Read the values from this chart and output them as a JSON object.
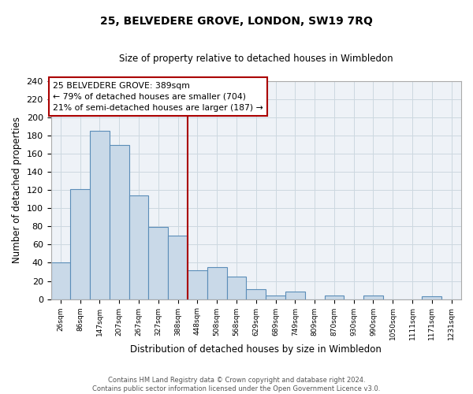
{
  "title": "25, BELVEDERE GROVE, LONDON, SW19 7RQ",
  "subtitle": "Size of property relative to detached houses in Wimbledon",
  "xlabel": "Distribution of detached houses by size in Wimbledon",
  "ylabel": "Number of detached properties",
  "footer_line1": "Contains HM Land Registry data © Crown copyright and database right 2024.",
  "footer_line2": "Contains public sector information licensed under the Open Government Licence v3.0.",
  "bar_labels": [
    "26sqm",
    "86sqm",
    "147sqm",
    "207sqm",
    "267sqm",
    "327sqm",
    "388sqm",
    "448sqm",
    "508sqm",
    "568sqm",
    "629sqm",
    "689sqm",
    "749sqm",
    "809sqm",
    "870sqm",
    "930sqm",
    "990sqm",
    "1050sqm",
    "1111sqm",
    "1171sqm",
    "1231sqm"
  ],
  "bar_values": [
    40,
    121,
    185,
    169,
    114,
    79,
    70,
    32,
    35,
    25,
    11,
    4,
    8,
    0,
    4,
    0,
    4,
    0,
    0,
    3,
    0
  ],
  "bar_color": "#c9d9e8",
  "bar_edge_color": "#5b8db8",
  "annotation_line_idx": 6,
  "annotation_line_color": "#aa0000",
  "annotation_box_text": "25 BELVEDERE GROVE: 389sqm\n← 79% of detached houses are smaller (704)\n21% of semi-detached houses are larger (187) →",
  "annotation_box_edge_color": "#aa0000",
  "annotation_box_face_color": "#ffffff",
  "ylim": [
    0,
    240
  ],
  "yticks": [
    0,
    20,
    40,
    60,
    80,
    100,
    120,
    140,
    160,
    180,
    200,
    220,
    240
  ],
  "grid_color": "#ccd8e0",
  "bg_color": "#eef2f7",
  "plot_bg_color": "#eef2f7"
}
